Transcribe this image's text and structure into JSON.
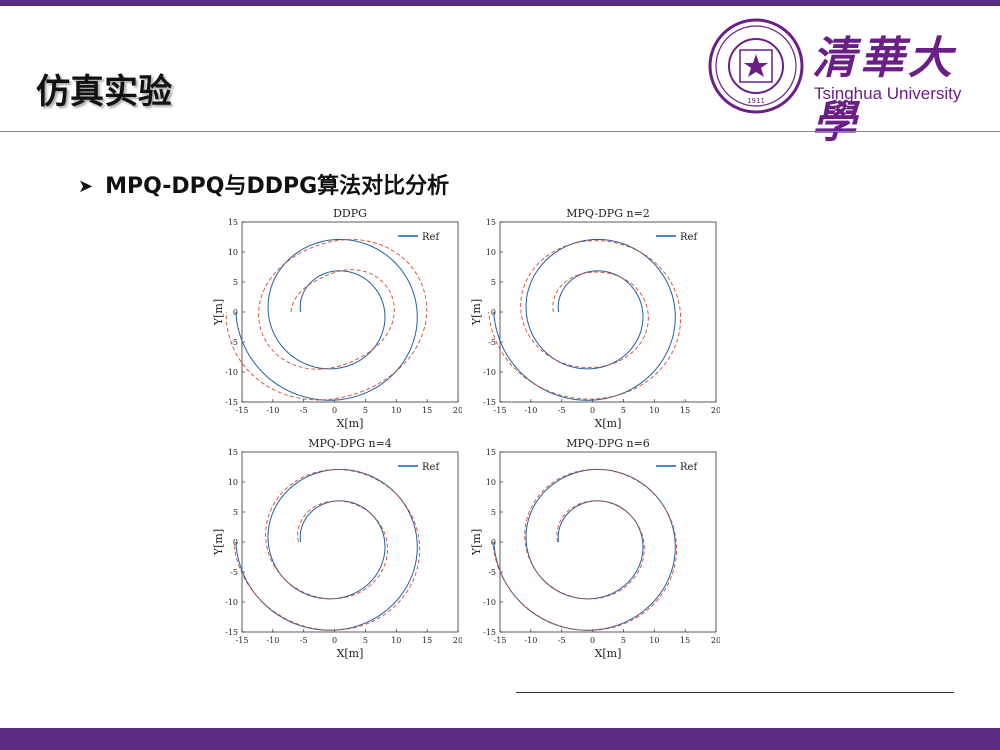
{
  "slide": {
    "title": "仿真实验",
    "bullet_arrow": "➤",
    "bullet": "MPQ-DPQ与DDPG算法对比分析",
    "logo": {
      "chinese": "清華大學",
      "english": "Tsinghua University",
      "seal_year": "1911"
    },
    "colors": {
      "brand_purple": "#5b2c83",
      "ref_line": "#1f5fa8",
      "tracked_path": "#d9482b"
    }
  },
  "chart_data": [
    {
      "type": "line",
      "title": "DDPG",
      "xlabel": "X[m]",
      "ylabel": "Y[m]",
      "xlim": [
        -15,
        20
      ],
      "ylim": [
        -15,
        15
      ],
      "xticks": [
        -15,
        -10,
        -5,
        0,
        5,
        10,
        15,
        20
      ],
      "yticks": [
        -15,
        -10,
        -5,
        0,
        5,
        10,
        15
      ],
      "legend": {
        "entry": "Ref",
        "placement": "top-right"
      },
      "grid": false,
      "reference_path": {
        "shape": "archimedean-spiral",
        "center": [
          0,
          0
        ],
        "start_radius": 5.5,
        "end_radius": 16,
        "turns": 2
      },
      "tracked_path": {
        "style": "dashed",
        "deviation": "large"
      }
    },
    {
      "type": "line",
      "title": "MPQ-DPG n=2",
      "xlabel": "X[m]",
      "ylabel": "Y[m]",
      "xlim": [
        -15,
        20
      ],
      "ylim": [
        -15,
        15
      ],
      "xticks": [
        -15,
        -10,
        -5,
        0,
        5,
        10,
        15,
        20
      ],
      "yticks": [
        -15,
        -10,
        -5,
        0,
        5,
        10,
        15
      ],
      "legend": {
        "entry": "Ref",
        "placement": "top-right"
      },
      "grid": false,
      "reference_path": {
        "shape": "archimedean-spiral",
        "center": [
          0,
          0
        ],
        "start_radius": 5.5,
        "end_radius": 16,
        "turns": 2
      },
      "tracked_path": {
        "style": "dashed",
        "deviation": "medium"
      }
    },
    {
      "type": "line",
      "title": "MPQ-DPG n=4",
      "xlabel": "X[m]",
      "ylabel": "Y[m]",
      "xlim": [
        -15,
        20
      ],
      "ylim": [
        -15,
        15
      ],
      "xticks": [
        -15,
        -10,
        -5,
        0,
        5,
        10,
        15,
        20
      ],
      "yticks": [
        -15,
        -10,
        -5,
        0,
        5,
        10,
        15
      ],
      "legend": {
        "entry": "Ref",
        "placement": "top-right"
      },
      "grid": false,
      "reference_path": {
        "shape": "archimedean-spiral",
        "center": [
          0,
          0
        ],
        "start_radius": 5.5,
        "end_radius": 16,
        "turns": 2
      },
      "tracked_path": {
        "style": "dashed",
        "deviation": "small"
      }
    },
    {
      "type": "line",
      "title": "MPQ-DPG n=6",
      "xlabel": "X[m]",
      "ylabel": "Y[m]",
      "xlim": [
        -15,
        20
      ],
      "ylim": [
        -15,
        15
      ],
      "xticks": [
        -15,
        -10,
        -5,
        0,
        5,
        10,
        15,
        20
      ],
      "yticks": [
        -15,
        -10,
        -5,
        0,
        5,
        10,
        15
      ],
      "legend": {
        "entry": "Ref",
        "placement": "top-right"
      },
      "grid": false,
      "reference_path": {
        "shape": "archimedean-spiral",
        "center": [
          0,
          0
        ],
        "start_radius": 5.5,
        "end_radius": 16,
        "turns": 2
      },
      "tracked_path": {
        "style": "dashed",
        "deviation": "very small"
      }
    }
  ]
}
